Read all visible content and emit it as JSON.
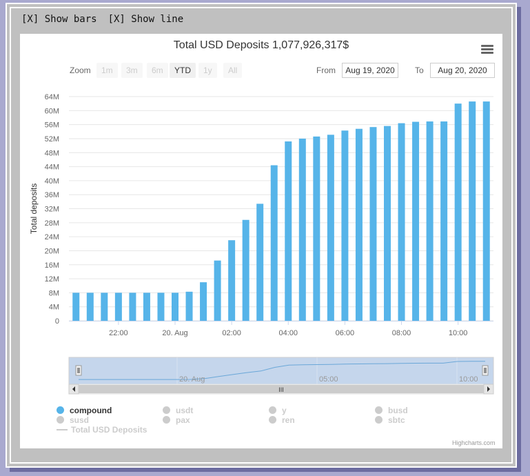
{
  "toggles": {
    "bars": "[X] Show bars",
    "line": "[X] Show line"
  },
  "chart_data": {
    "type": "bar",
    "title": "Total USD Deposits 1,077,926,317$",
    "ylabel": "Total deposits",
    "xlabel": "",
    "ylim": [
      0,
      64
    ],
    "y_unit": "M",
    "y_ticks": [
      "0",
      "4M",
      "8M",
      "12M",
      "16M",
      "20M",
      "24M",
      "28M",
      "32M",
      "36M",
      "40M",
      "44M",
      "48M",
      "52M",
      "56M",
      "60M",
      "64M"
    ],
    "x_ticks": [
      {
        "label": "22:00",
        "index": 3
      },
      {
        "label": "20. Aug",
        "index": 7
      },
      {
        "label": "02:00",
        "index": 11
      },
      {
        "label": "04:00",
        "index": 15
      },
      {
        "label": "06:00",
        "index": 19
      },
      {
        "label": "08:00",
        "index": 23
      },
      {
        "label": "10:00",
        "index": 27
      }
    ],
    "series": [
      {
        "name": "compound",
        "color": "#56b4e9",
        "values": [
          8,
          8,
          8,
          8,
          8,
          8,
          8,
          8,
          8.3,
          11,
          17.2,
          23,
          28.8,
          33.4,
          44.4,
          51.2,
          52,
          52.6,
          53.1,
          54.3,
          54.8,
          55.3,
          55.6,
          56.4,
          56.8,
          56.9,
          56.9,
          62,
          62.6,
          62.6
        ]
      }
    ],
    "grid": true
  },
  "zoom": {
    "label": "Zoom",
    "buttons": [
      "1m",
      "3m",
      "6m",
      "YTD",
      "1y",
      "All"
    ],
    "active": "YTD"
  },
  "range": {
    "from_label": "From",
    "from_value": "Aug 19, 2020",
    "to_label": "To",
    "to_value": "Aug 20, 2020"
  },
  "navigator": {
    "labels": [
      "20. Aug",
      "05:00",
      "10:00"
    ],
    "scroll_grip": "III"
  },
  "legend": [
    {
      "name": "compound",
      "enabled": true
    },
    {
      "name": "usdt",
      "enabled": false
    },
    {
      "name": "y",
      "enabled": false
    },
    {
      "name": "busd",
      "enabled": false
    },
    {
      "name": "susd",
      "enabled": false
    },
    {
      "name": "pax",
      "enabled": false
    },
    {
      "name": "ren",
      "enabled": false
    },
    {
      "name": "sbtc",
      "enabled": false
    }
  ],
  "legend_line": "Total USD Deposits",
  "credits": "Highcharts.com"
}
